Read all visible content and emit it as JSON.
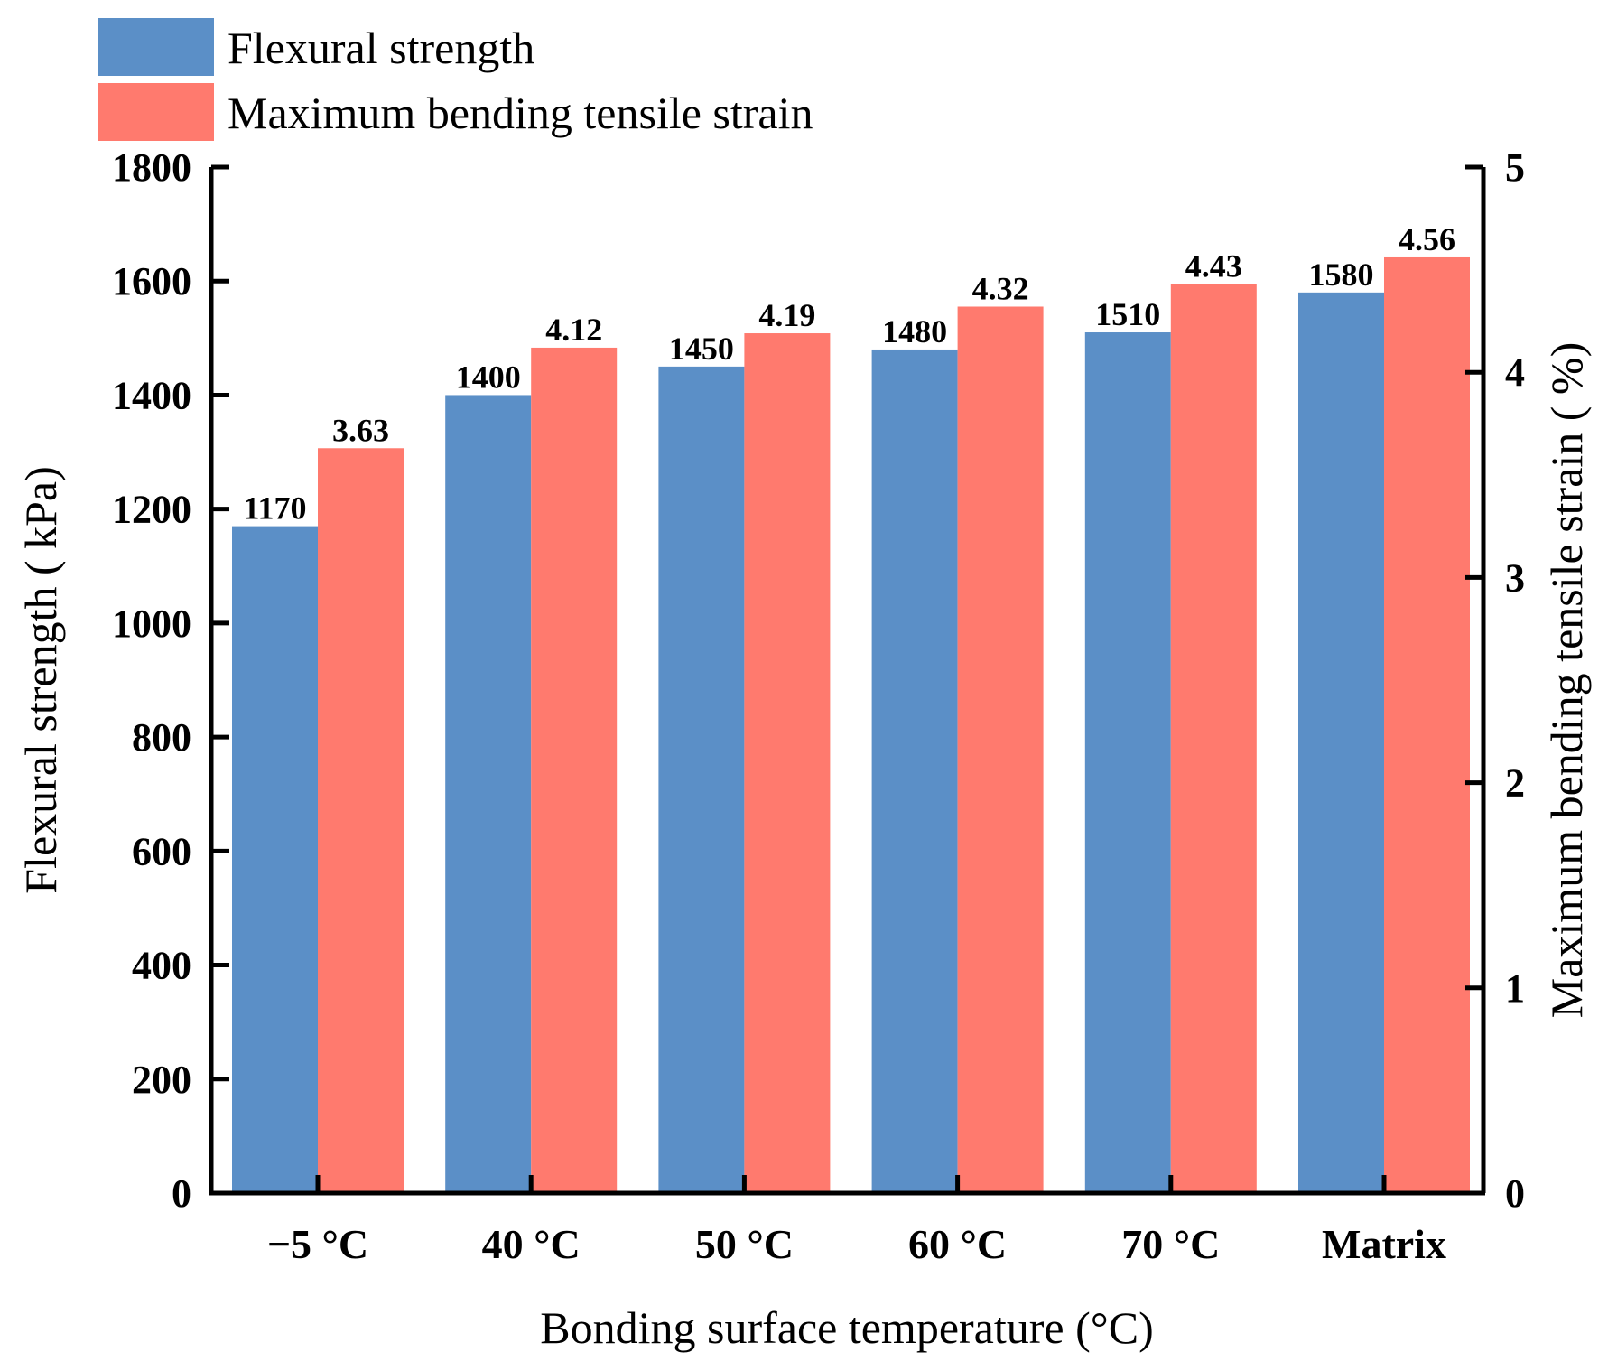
{
  "chart_data": {
    "type": "bar",
    "categories": [
      "−5 °C",
      "40 °C",
      "50 °C",
      "60 °C",
      "70 °C",
      "Matrix"
    ],
    "series": [
      {
        "name": "Flexural strength",
        "axis": "left",
        "color": "#5b8fc7",
        "values": [
          1170,
          1400,
          1450,
          1480,
          1510,
          1580
        ],
        "labels": [
          "1170",
          "1400",
          "1450",
          "1480",
          "1510",
          "1580"
        ]
      },
      {
        "name": "Maximum bending tensile strain",
        "axis": "right",
        "color": "#ff7a6e",
        "values": [
          3.63,
          4.12,
          4.19,
          4.32,
          4.43,
          4.56
        ],
        "labels": [
          "3.63",
          "4.12",
          "4.19",
          "4.32",
          "4.43",
          "4.56"
        ]
      }
    ],
    "xlabel": "Bonding surface temperature (°C)",
    "ylabel_left": "Flexural strength ( kPa)",
    "ylabel_right": "Maximum bending tensile strain ( %)",
    "ylim_left": [
      0,
      1800
    ],
    "yticks_left": [
      0,
      200,
      400,
      600,
      800,
      1000,
      1200,
      1400,
      1600,
      1800
    ],
    "ylim_right": [
      0,
      5
    ],
    "yticks_right": [
      0,
      1,
      2,
      3,
      4,
      5
    ],
    "grid": false,
    "legend_position": "top-left"
  }
}
